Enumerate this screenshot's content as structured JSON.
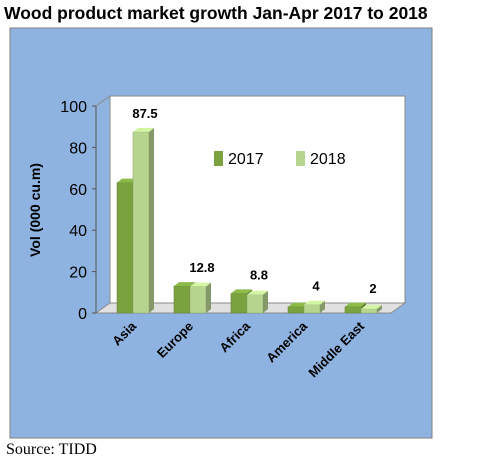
{
  "title": "Wood product market growth Jan-Apr 2017 to 2018",
  "source": "Source: TIDD",
  "colors": {
    "frame_bg": "#8fb3e0",
    "plot_bg": "#ffffff",
    "series_2017": "#7aa33f",
    "series_2018": "#b8d58f"
  },
  "chart_data": {
    "type": "bar",
    "three_d": true,
    "categories": [
      "Asia",
      "Europe",
      "Africa",
      "America",
      "Middle East"
    ],
    "series": [
      {
        "name": "2017",
        "values": [
          63,
          13,
          9.5,
          3,
          3
        ]
      },
      {
        "name": "2018",
        "values": [
          87.5,
          12.8,
          8.8,
          4,
          2
        ]
      }
    ],
    "data_labels": [
      "87.5",
      "12.8",
      "8.8",
      "4",
      "2"
    ],
    "ylabel": "Vol (000  cu.m)",
    "ylim": [
      0,
      100
    ],
    "yticks": [
      0,
      20,
      40,
      60,
      80,
      100
    ],
    "legend": [
      "2017",
      "2018"
    ],
    "legend_position": "top-right",
    "grid": false
  }
}
